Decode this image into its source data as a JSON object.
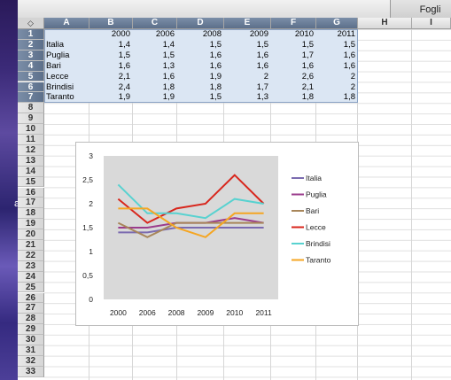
{
  "toolbar": {
    "tab_label": "Fogli"
  },
  "desktop": {
    "edge_char": "a"
  },
  "sheet": {
    "corner_glyph": "◇",
    "columns": [
      "A",
      "B",
      "C",
      "D",
      "E",
      "F",
      "G",
      "H",
      "I"
    ],
    "rows": [
      "1",
      "2",
      "3",
      "4",
      "5",
      "6",
      "7",
      "8",
      "9",
      "10",
      "11",
      "12",
      "13",
      "14",
      "15",
      "16",
      "17",
      "18",
      "19",
      "20",
      "21",
      "22",
      "23",
      "24",
      "25",
      "26",
      "27",
      "28",
      "29",
      "30",
      "31",
      "32",
      "33"
    ],
    "header_row": [
      "",
      "2000",
      "2006",
      "2008",
      "2009",
      "2010",
      "2011"
    ],
    "data_rows": [
      [
        "Italia",
        "1,4",
        "1,4",
        "1,5",
        "1,5",
        "1,5",
        "1,5"
      ],
      [
        "Puglia",
        "1,5",
        "1,5",
        "1,6",
        "1,6",
        "1,7",
        "1,6"
      ],
      [
        "Bari",
        "1,6",
        "1,3",
        "1,6",
        "1,6",
        "1,6",
        "1,6"
      ],
      [
        "Lecce",
        "2,1",
        "1,6",
        "1,9",
        "2",
        "2,6",
        "2"
      ],
      [
        "Brindisi",
        "2,4",
        "1,8",
        "1,8",
        "1,7",
        "2,1",
        "2"
      ],
      [
        "Taranto",
        "1,9",
        "1,9",
        "1,5",
        "1,3",
        "1,8",
        "1,8"
      ]
    ]
  },
  "chart_data": {
    "type": "line",
    "categories": [
      "2000",
      "2006",
      "2008",
      "2009",
      "2010",
      "2011"
    ],
    "ylim": [
      0,
      3
    ],
    "yticks": [
      "0",
      "0,5",
      "1",
      "1,5",
      "2",
      "2,5",
      "3"
    ],
    "legend_position": "right",
    "plot_background": "#d9d9d9",
    "series": [
      {
        "name": "Italia",
        "color": "#7b6bb0",
        "values": [
          1.4,
          1.4,
          1.5,
          1.5,
          1.5,
          1.5
        ]
      },
      {
        "name": "Puglia",
        "color": "#9b3c8c",
        "values": [
          1.5,
          1.5,
          1.6,
          1.6,
          1.7,
          1.6
        ]
      },
      {
        "name": "Bari",
        "color": "#a8865a",
        "values": [
          1.6,
          1.3,
          1.6,
          1.6,
          1.6,
          1.6
        ]
      },
      {
        "name": "Lecce",
        "color": "#d8261c",
        "values": [
          2.1,
          1.6,
          1.9,
          2.0,
          2.6,
          2.0
        ]
      },
      {
        "name": "Brindisi",
        "color": "#58d2d0",
        "values": [
          2.4,
          1.8,
          1.8,
          1.7,
          2.1,
          2.0
        ]
      },
      {
        "name": "Taranto",
        "color": "#f5a623",
        "values": [
          1.9,
          1.9,
          1.5,
          1.3,
          1.8,
          1.8
        ]
      }
    ]
  }
}
